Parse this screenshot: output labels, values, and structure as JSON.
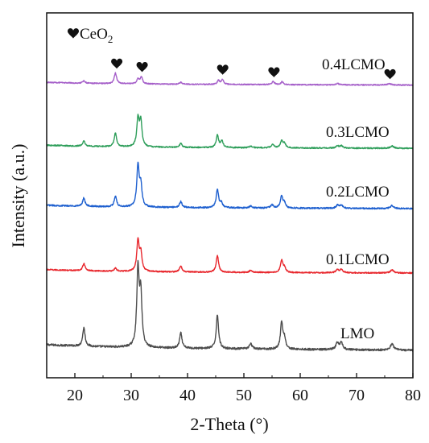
{
  "chart_data": {
    "type": "line",
    "title": "",
    "xlabel": "2-Theta (°)",
    "ylabel": "Intensity (a.u.)",
    "xlim": [
      15,
      80
    ],
    "xticks": [
      20,
      30,
      40,
      50,
      60,
      70,
      80
    ],
    "grid": false,
    "legend": {
      "placement": "top-left",
      "marker": "heart",
      "label_main": "CeO",
      "label_sub": "2"
    },
    "ceo2_markers": [
      {
        "x": 27.3
      },
      {
        "x": 31.8
      },
      {
        "x": 46.1
      },
      {
        "x": 55.2
      },
      {
        "x": 75.8
      }
    ],
    "series": [
      {
        "name": "LMO",
        "color": "#4d4d4d",
        "baseline": 0.06,
        "slope": -0.03,
        "noise": 0.012,
        "peaks": [
          {
            "x": 21.6,
            "h": 0.22,
            "w": 0.25
          },
          {
            "x": 31.2,
            "h": 0.9,
            "w": 0.25
          },
          {
            "x": 31.7,
            "h": 0.6,
            "w": 0.25
          },
          {
            "x": 38.8,
            "h": 0.18,
            "w": 0.25
          },
          {
            "x": 45.3,
            "h": 0.4,
            "w": 0.25
          },
          {
            "x": 51.2,
            "h": 0.06,
            "w": 0.3
          },
          {
            "x": 56.7,
            "h": 0.31,
            "w": 0.25
          },
          {
            "x": 57.2,
            "h": 0.12,
            "w": 0.25
          },
          {
            "x": 66.6,
            "h": 0.08,
            "w": 0.3
          },
          {
            "x": 67.3,
            "h": 0.08,
            "w": 0.3
          },
          {
            "x": 76.3,
            "h": 0.07,
            "w": 0.35
          }
        ]
      },
      {
        "name": "0.1LCMO",
        "color": "#e8272d",
        "baseline": 0.06,
        "slope": -0.02,
        "noise": 0.01,
        "peaks": [
          {
            "x": 21.6,
            "h": 0.12,
            "w": 0.25
          },
          {
            "x": 27.2,
            "h": 0.05,
            "w": 0.25
          },
          {
            "x": 31.2,
            "h": 0.5,
            "w": 0.25
          },
          {
            "x": 31.7,
            "h": 0.3,
            "w": 0.25
          },
          {
            "x": 38.8,
            "h": 0.1,
            "w": 0.25
          },
          {
            "x": 45.3,
            "h": 0.28,
            "w": 0.25
          },
          {
            "x": 51.2,
            "h": 0.03,
            "w": 0.3
          },
          {
            "x": 56.7,
            "h": 0.2,
            "w": 0.25
          },
          {
            "x": 57.2,
            "h": 0.08,
            "w": 0.25
          },
          {
            "x": 66.6,
            "h": 0.05,
            "w": 0.3
          },
          {
            "x": 67.3,
            "h": 0.05,
            "w": 0.3
          },
          {
            "x": 76.3,
            "h": 0.05,
            "w": 0.35
          }
        ]
      },
      {
        "name": "0.2LCMO",
        "color": "#1d5fcf",
        "baseline": 0.06,
        "slope": -0.02,
        "noise": 0.012,
        "peaks": [
          {
            "x": 21.6,
            "h": 0.14,
            "w": 0.25
          },
          {
            "x": 27.2,
            "h": 0.18,
            "w": 0.25
          },
          {
            "x": 31.2,
            "h": 0.68,
            "w": 0.25
          },
          {
            "x": 31.7,
            "h": 0.35,
            "w": 0.25
          },
          {
            "x": 38.8,
            "h": 0.1,
            "w": 0.25
          },
          {
            "x": 45.3,
            "h": 0.3,
            "w": 0.25
          },
          {
            "x": 46.0,
            "h": 0.08,
            "w": 0.25
          },
          {
            "x": 51.2,
            "h": 0.03,
            "w": 0.3
          },
          {
            "x": 55.0,
            "h": 0.05,
            "w": 0.3
          },
          {
            "x": 56.7,
            "h": 0.2,
            "w": 0.25
          },
          {
            "x": 57.2,
            "h": 0.08,
            "w": 0.25
          },
          {
            "x": 66.6,
            "h": 0.05,
            "w": 0.3
          },
          {
            "x": 67.3,
            "h": 0.05,
            "w": 0.3
          },
          {
            "x": 76.3,
            "h": 0.05,
            "w": 0.35
          }
        ]
      },
      {
        "name": "0.3LCMO",
        "color": "#2e9e5a",
        "baseline": 0.06,
        "slope": -0.02,
        "noise": 0.011,
        "peaks": [
          {
            "x": 21.6,
            "h": 0.09,
            "w": 0.25
          },
          {
            "x": 27.2,
            "h": 0.24,
            "w": 0.25
          },
          {
            "x": 31.2,
            "h": 0.48,
            "w": 0.25
          },
          {
            "x": 31.7,
            "h": 0.45,
            "w": 0.25
          },
          {
            "x": 38.8,
            "h": 0.07,
            "w": 0.25
          },
          {
            "x": 45.3,
            "h": 0.22,
            "w": 0.25
          },
          {
            "x": 46.1,
            "h": 0.12,
            "w": 0.25
          },
          {
            "x": 51.2,
            "h": 0.03,
            "w": 0.3
          },
          {
            "x": 55.1,
            "h": 0.06,
            "w": 0.3
          },
          {
            "x": 56.7,
            "h": 0.12,
            "w": 0.25
          },
          {
            "x": 57.2,
            "h": 0.08,
            "w": 0.25
          },
          {
            "x": 66.6,
            "h": 0.04,
            "w": 0.3
          },
          {
            "x": 67.3,
            "h": 0.04,
            "w": 0.3
          },
          {
            "x": 76.3,
            "h": 0.04,
            "w": 0.35
          }
        ]
      },
      {
        "name": "0.4LCMO",
        "color": "#a55fc9",
        "baseline": 0.06,
        "slope": -0.02,
        "noise": 0.011,
        "peaks": [
          {
            "x": 21.6,
            "h": 0.05,
            "w": 0.25
          },
          {
            "x": 27.2,
            "h": 0.22,
            "w": 0.25
          },
          {
            "x": 31.2,
            "h": 0.1,
            "w": 0.25
          },
          {
            "x": 31.8,
            "h": 0.14,
            "w": 0.25
          },
          {
            "x": 38.8,
            "h": 0.04,
            "w": 0.25
          },
          {
            "x": 45.5,
            "h": 0.08,
            "w": 0.25
          },
          {
            "x": 46.2,
            "h": 0.1,
            "w": 0.25
          },
          {
            "x": 55.2,
            "h": 0.06,
            "w": 0.3
          },
          {
            "x": 56.8,
            "h": 0.06,
            "w": 0.25
          },
          {
            "x": 66.6,
            "h": 0.03,
            "w": 0.3
          },
          {
            "x": 75.8,
            "h": 0.03,
            "w": 0.35
          }
        ]
      }
    ]
  }
}
